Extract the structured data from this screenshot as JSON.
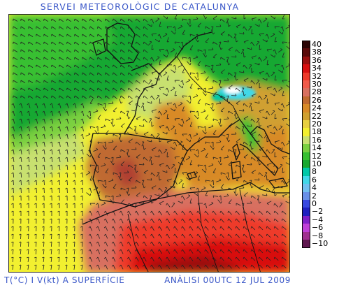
{
  "header": {
    "title": "SERVEI METEOROLÒGIC DE CATALUNYA"
  },
  "footer": {
    "variable_label": "T(°C) I V(kt) A SUPERFÍCIE",
    "analysis_label": "ANÀLISI 00UTC 12 JUL 2009"
  },
  "legend": {
    "items": [
      {
        "label": "40",
        "color": "#2a0505"
      },
      {
        "label": "38",
        "color": "#5a0b0b"
      },
      {
        "label": "36",
        "color": "#9a1010"
      },
      {
        "label": "34",
        "color": "#d81010"
      },
      {
        "label": "32",
        "color": "#ee3a2a"
      },
      {
        "label": "30",
        "color": "#f05a4a"
      },
      {
        "label": "28",
        "color": "#d87060"
      },
      {
        "label": "26",
        "color": "#c06a30"
      },
      {
        "label": "24",
        "color": "#d88a28"
      },
      {
        "label": "22",
        "color": "#d0a030"
      },
      {
        "label": "20",
        "color": "#e8d040"
      },
      {
        "label": "18",
        "color": "#f2f030"
      },
      {
        "label": "16",
        "color": "#c8e070"
      },
      {
        "label": "14",
        "color": "#7ad040"
      },
      {
        "label": "12",
        "color": "#38c030"
      },
      {
        "label": "10",
        "color": "#18a830"
      },
      {
        "label": "8",
        "color": "#00c8a8"
      },
      {
        "label": "6",
        "color": "#40d8e8"
      },
      {
        "label": "4",
        "color": "#70c0f0"
      },
      {
        "label": "2",
        "color": "#6890e8"
      },
      {
        "label": "0",
        "color": "#3848e0"
      },
      {
        "label": "−2",
        "color": "#2020c0"
      },
      {
        "label": "−4",
        "color": "#8020c8"
      },
      {
        "label": "−6",
        "color": "#c040d8"
      },
      {
        "label": "−8",
        "color": "#a03090"
      },
      {
        "label": "−10",
        "color": "#601850"
      }
    ]
  },
  "map": {
    "colors": {
      "sea_north": "#18a830",
      "atlantic_mid": "#c8e070",
      "sea_south": "#f2f030",
      "med": "#d88a28",
      "land_hot": "#c06a30",
      "sahara": "#ee3a2a",
      "sahara_core": "#d81010",
      "alps": "#40d8e8",
      "coast": "#111111",
      "barb": "#222222"
    },
    "features": {
      "coastlines": "coastlines",
      "borders": "borders",
      "wind_barbs": "wind-barbs"
    }
  }
}
